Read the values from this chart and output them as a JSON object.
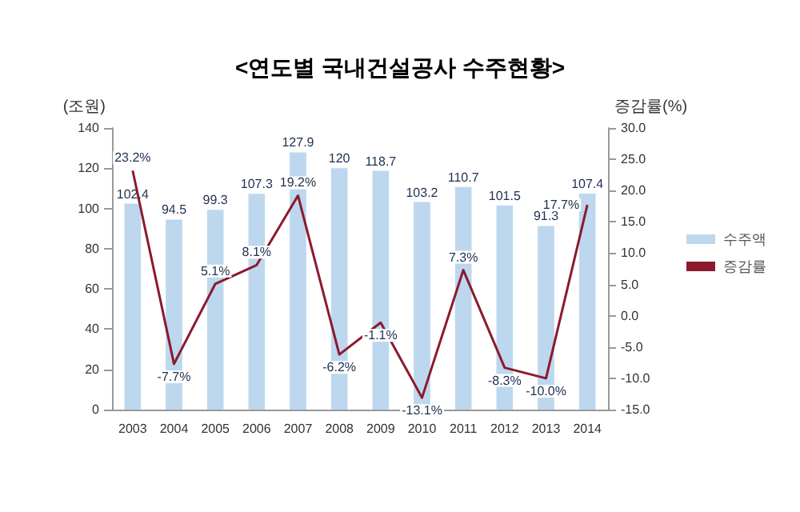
{
  "chart_data": {
    "type": "bar",
    "title": "<연도별 국내건설공사 수주현황>",
    "ylabel": "(조원)",
    "y2label": "증감률(%)",
    "categories": [
      "2003",
      "2004",
      "2005",
      "2006",
      "2007",
      "2008",
      "2009",
      "2010",
      "2011",
      "2012",
      "2013",
      "2014"
    ],
    "series": [
      {
        "name": "수주액",
        "color": "#bdd7ee",
        "values": [
          102.4,
          94.5,
          99.3,
          107.3,
          127.9,
          120,
          118.7,
          103.2,
          110.7,
          101.5,
          91.3,
          107.4
        ],
        "value_labels": [
          "102.4",
          "94.5",
          "99.3",
          "107.3",
          "127.9",
          "120",
          "118.7",
          "103.2",
          "110.7",
          "101.5",
          "91.3",
          "107.4"
        ]
      },
      {
        "name": "증감률",
        "type": "line",
        "axis": "y2",
        "color": "#8b1a2e",
        "values": [
          23.2,
          -7.7,
          5.1,
          8.1,
          19.2,
          -6.2,
          -1.1,
          -13.1,
          7.3,
          -8.3,
          -10.0,
          17.7
        ],
        "value_labels": [
          "23.2%",
          "-7.7%",
          "5.1%",
          "8.1%",
          "19.2%",
          "-6.2%",
          "-1.1%",
          "-13.1%",
          "7.3%",
          "-8.3%",
          "-10.0%",
          "17.7%"
        ]
      }
    ],
    "ylim": [
      0,
      140
    ],
    "yticks": [
      0,
      20,
      40,
      60,
      80,
      100,
      120,
      140
    ],
    "y2lim": [
      -15,
      30
    ],
    "y2ticks": [
      {
        "value": -15,
        "label": "-15.0"
      },
      {
        "value": -10,
        "label": "-10.0"
      },
      {
        "value": -5,
        "label": "-5.0"
      },
      {
        "value": 0,
        "label": "0.0"
      },
      {
        "value": 5,
        "label": "5.0"
      },
      {
        "value": 10,
        "label": "10.0"
      },
      {
        "value": 15,
        "label": "15.0"
      },
      {
        "value": 20,
        "label": "20.0"
      },
      {
        "value": 25,
        "label": "25.0"
      },
      {
        "value": 30,
        "label": "30.0"
      }
    ],
    "grid": false,
    "legend": "right",
    "marker": "none",
    "line_style": "solid"
  }
}
